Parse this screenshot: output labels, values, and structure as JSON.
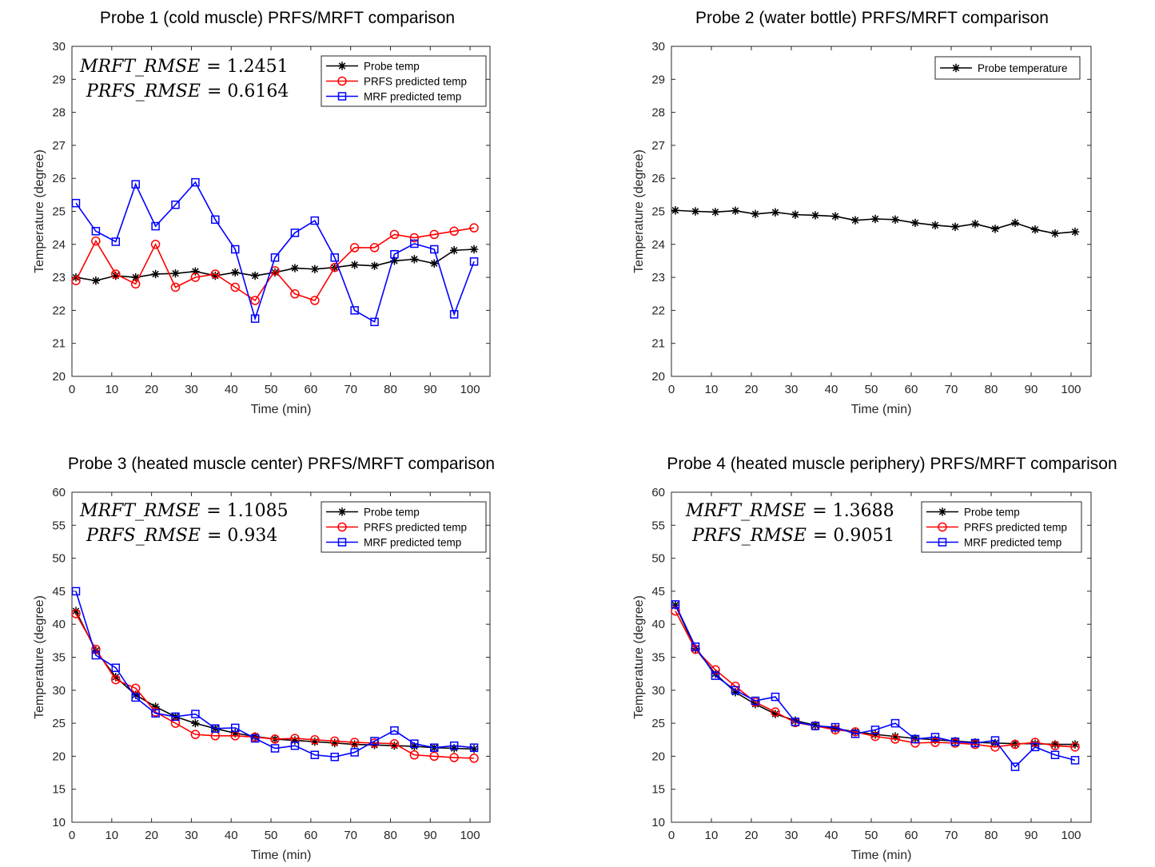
{
  "chart_data": [
    {
      "type": "line",
      "title": "Probe 1 (cold muscle) PRFS/MRFT comparison",
      "xlabel": "Time (min)",
      "ylabel": "Temperature (degree)",
      "xlim": [
        0,
        105
      ],
      "ylim": [
        20,
        30
      ],
      "xticks": [
        0,
        10,
        20,
        30,
        40,
        50,
        60,
        70,
        80,
        90,
        100
      ],
      "yticks": [
        20,
        21,
        22,
        23,
        24,
        25,
        26,
        27,
        28,
        29,
        30
      ],
      "xtick_labels": [
        "0",
        "10",
        "20",
        "30",
        "40",
        "50",
        "60",
        "70",
        "80",
        "90",
        "100"
      ],
      "ytick_labels": [
        "20",
        "21",
        "22",
        "23",
        "24",
        "25",
        "26",
        "27",
        "28",
        "29",
        "30"
      ],
      "legend_location": "top-right",
      "annotations": [
        {
          "label": "MRFT_RMSE",
          "value": "= 1.2451"
        },
        {
          "label": "PRFS_RMSE",
          "value": "= 0.6164"
        }
      ],
      "x": [
        1,
        6,
        11,
        16,
        21,
        26,
        31,
        36,
        41,
        46,
        51,
        56,
        61,
        66,
        71,
        76,
        81,
        86,
        91,
        96,
        101
      ],
      "series": [
        {
          "name": "Probe temp",
          "color": "#000000",
          "marker": "star",
          "values": [
            23.0,
            22.9,
            23.05,
            23.0,
            23.1,
            23.12,
            23.18,
            23.05,
            23.15,
            23.05,
            23.15,
            23.28,
            23.25,
            23.3,
            23.38,
            23.35,
            23.5,
            23.55,
            23.42,
            23.82,
            23.85
          ]
        },
        {
          "name": "PRFS predicted temp",
          "color": "#ff0000",
          "marker": "circle",
          "values": [
            22.9,
            24.1,
            23.1,
            22.8,
            24.0,
            22.7,
            23.0,
            23.1,
            22.7,
            22.3,
            23.2,
            22.5,
            22.3,
            23.3,
            23.9,
            23.9,
            24.3,
            24.2,
            24.3,
            24.4,
            24.5
          ]
        },
        {
          "name": "MRF predicted temp",
          "color": "#0000ff",
          "marker": "square",
          "values": [
            25.25,
            24.4,
            24.08,
            25.82,
            24.55,
            25.2,
            25.88,
            24.75,
            23.85,
            21.75,
            23.6,
            24.35,
            24.72,
            23.6,
            22.0,
            21.65,
            23.7,
            24.02,
            23.85,
            21.88,
            23.48
          ]
        }
      ]
    },
    {
      "type": "line",
      "title": "Probe 2 (water bottle) PRFS/MRFT comparison",
      "xlabel": "Time (min)",
      "ylabel": "Temperature (degree)",
      "xlim": [
        0,
        105
      ],
      "ylim": [
        20,
        30
      ],
      "xticks": [
        0,
        10,
        20,
        30,
        40,
        50,
        60,
        70,
        80,
        90,
        100
      ],
      "yticks": [
        20,
        21,
        22,
        23,
        24,
        25,
        26,
        27,
        28,
        29,
        30
      ],
      "xtick_labels": [
        "0",
        "10",
        "20",
        "30",
        "40",
        "50",
        "60",
        "70",
        "80",
        "90",
        "100"
      ],
      "ytick_labels": [
        "20",
        "21",
        "22",
        "23",
        "24",
        "25",
        "26",
        "27",
        "28",
        "29",
        "30"
      ],
      "legend_location": "top-right",
      "annotations": [],
      "x": [
        1,
        6,
        11,
        16,
        21,
        26,
        31,
        36,
        41,
        46,
        51,
        56,
        61,
        66,
        71,
        76,
        81,
        86,
        91,
        96,
        101
      ],
      "series": [
        {
          "name": "Probe temperature",
          "color": "#000000",
          "marker": "star",
          "values": [
            25.03,
            25.0,
            24.98,
            25.02,
            24.92,
            24.97,
            24.9,
            24.88,
            24.85,
            24.73,
            24.77,
            24.75,
            24.65,
            24.58,
            24.53,
            24.62,
            24.47,
            24.65,
            24.45,
            24.33,
            24.38
          ]
        }
      ]
    },
    {
      "type": "line",
      "title": "Probe 3 (heated muscle center) PRFS/MRFT comparison",
      "xlabel": "Time (min)",
      "ylabel": "Temperature (degree)",
      "xlim": [
        0,
        105
      ],
      "ylim": [
        10,
        60
      ],
      "xticks": [
        0,
        10,
        20,
        30,
        40,
        50,
        60,
        70,
        80,
        90,
        100
      ],
      "yticks": [
        10,
        15,
        20,
        25,
        30,
        35,
        40,
        45,
        50,
        55,
        60
      ],
      "xtick_labels": [
        "0",
        "10",
        "20",
        "30",
        "40",
        "50",
        "60",
        "70",
        "80",
        "90",
        "100"
      ],
      "ytick_labels": [
        "10",
        "15",
        "20",
        "25",
        "30",
        "35",
        "40",
        "45",
        "50",
        "55",
        "60"
      ],
      "legend_location": "top-right",
      "annotations": [
        {
          "label": "MRFT_RMSE",
          "value": "= 1.1085"
        },
        {
          "label": "PRFS_RMSE",
          "value": "= 0.934"
        }
      ],
      "x": [
        1,
        6,
        11,
        16,
        21,
        26,
        31,
        36,
        41,
        46,
        51,
        56,
        61,
        66,
        71,
        76,
        81,
        86,
        91,
        96,
        101
      ],
      "series": [
        {
          "name": "Probe temp",
          "color": "#000000",
          "marker": "star",
          "values": [
            42.0,
            36.0,
            32.0,
            29.3,
            27.5,
            26.0,
            25.0,
            24.2,
            23.5,
            23.0,
            22.6,
            22.4,
            22.2,
            22.0,
            21.8,
            21.7,
            21.6,
            21.5,
            21.3,
            21.2,
            21.1
          ]
        },
        {
          "name": "PRFS predicted temp",
          "color": "#ff0000",
          "marker": "circle",
          "values": [
            41.6,
            36.2,
            31.6,
            30.3,
            26.7,
            25.0,
            23.3,
            23.1,
            23.1,
            22.9,
            22.6,
            22.7,
            22.5,
            22.3,
            22.1,
            22.0,
            21.9,
            20.2,
            20.0,
            19.8,
            19.7
          ]
        },
        {
          "name": "MRF predicted temp",
          "color": "#0000ff",
          "marker": "square",
          "values": [
            45.0,
            35.3,
            33.4,
            28.9,
            26.5,
            26.0,
            26.4,
            24.2,
            24.3,
            22.7,
            21.2,
            21.6,
            20.2,
            19.9,
            20.6,
            22.3,
            23.9,
            21.9,
            21.3,
            21.6,
            21.3
          ]
        }
      ]
    },
    {
      "type": "line",
      "title": "Probe 4 (heated muscle periphery) PRFS/MRFT comparison",
      "xlabel": "Time (min)",
      "ylabel": "Temperature (degree)",
      "xlim": [
        0,
        105
      ],
      "ylim": [
        10,
        60
      ],
      "xticks": [
        0,
        10,
        20,
        30,
        40,
        50,
        60,
        70,
        80,
        90,
        100
      ],
      "yticks": [
        10,
        15,
        20,
        25,
        30,
        35,
        40,
        45,
        50,
        55,
        60
      ],
      "xtick_labels": [
        "0",
        "10",
        "20",
        "30",
        "40",
        "50",
        "60",
        "70",
        "80",
        "90",
        "100"
      ],
      "ytick_labels": [
        "10",
        "15",
        "20",
        "25",
        "30",
        "35",
        "40",
        "45",
        "50",
        "55",
        "60"
      ],
      "legend_location": "top-right",
      "annotations": [
        {
          "label": "MRFT_RMSE",
          "value": "= 1.3688"
        },
        {
          "label": "PRFS_RMSE",
          "value": "= 0.9051"
        }
      ],
      "x": [
        1,
        6,
        11,
        16,
        21,
        26,
        31,
        36,
        41,
        46,
        51,
        56,
        61,
        66,
        71,
        76,
        81,
        86,
        91,
        96,
        101
      ],
      "series": [
        {
          "name": "Probe temp",
          "color": "#000000",
          "marker": "star",
          "values": [
            42.9,
            36.3,
            32.5,
            29.7,
            27.9,
            26.4,
            25.4,
            24.7,
            24.2,
            23.7,
            23.3,
            23.0,
            22.7,
            22.5,
            22.3,
            22.1,
            22.0,
            21.9,
            21.9,
            21.8,
            21.8
          ]
        },
        {
          "name": "PRFS predicted temp",
          "color": "#ff0000",
          "marker": "circle",
          "values": [
            42.0,
            36.2,
            33.1,
            30.6,
            28.2,
            26.7,
            25.1,
            24.6,
            24.0,
            23.7,
            23.0,
            22.6,
            22.0,
            22.1,
            22.0,
            21.8,
            21.4,
            21.8,
            22.1,
            21.6,
            21.4
          ]
        },
        {
          "name": "MRF predicted temp",
          "color": "#0000ff",
          "marker": "square",
          "values": [
            43.0,
            36.6,
            32.2,
            30.0,
            28.4,
            29.0,
            25.2,
            24.6,
            24.4,
            23.4,
            24.0,
            25.0,
            22.6,
            22.9,
            22.2,
            22.0,
            22.4,
            18.4,
            21.4,
            20.2,
            19.4
          ]
        }
      ]
    }
  ]
}
